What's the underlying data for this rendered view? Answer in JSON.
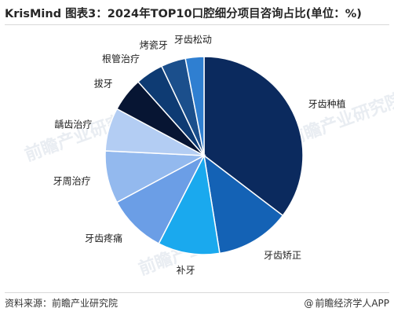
{
  "title": "KrisMind 图表3：2024年TOP10口腔细分项目咨询占比(单位：%)",
  "footer": {
    "source": "资料来源：前瞻产业研究院",
    "brand": "前瞻经济学人APP"
  },
  "watermark": "前瞻产业研究院",
  "chart_data": {
    "type": "pie",
    "title": "KrisMind 图表3：2024年TOP10口腔细分项目咨询占比(单位：%)",
    "unit": "%",
    "start": "12 o'clock, clockwise",
    "slices": [
      {
        "label": "牙齿种植",
        "value": 35.0,
        "color": "#0b2a5e"
      },
      {
        "label": "牙齿矫正",
        "value": 12.0,
        "color": "#1462b5"
      },
      {
        "label": "补牙",
        "value": 10.0,
        "color": "#1aa9ee"
      },
      {
        "label": "牙齿疼痛",
        "value": 9.5,
        "color": "#6b9ee6"
      },
      {
        "label": "牙周治疗",
        "value": 8.5,
        "color": "#93b9ee"
      },
      {
        "label": "龋齿治疗",
        "value": 7.0,
        "color": "#b3cdf3"
      },
      {
        "label": "拔牙",
        "value": 5.5,
        "color": "#071533"
      },
      {
        "label": "根管治疗",
        "value": 4.5,
        "color": "#0e3b73"
      },
      {
        "label": "烤瓷牙",
        "value": 4.0,
        "color": "#1b4f8c"
      },
      {
        "label": "牙齿松动",
        "value": 3.0,
        "color": "#2f7fd1"
      }
    ]
  }
}
